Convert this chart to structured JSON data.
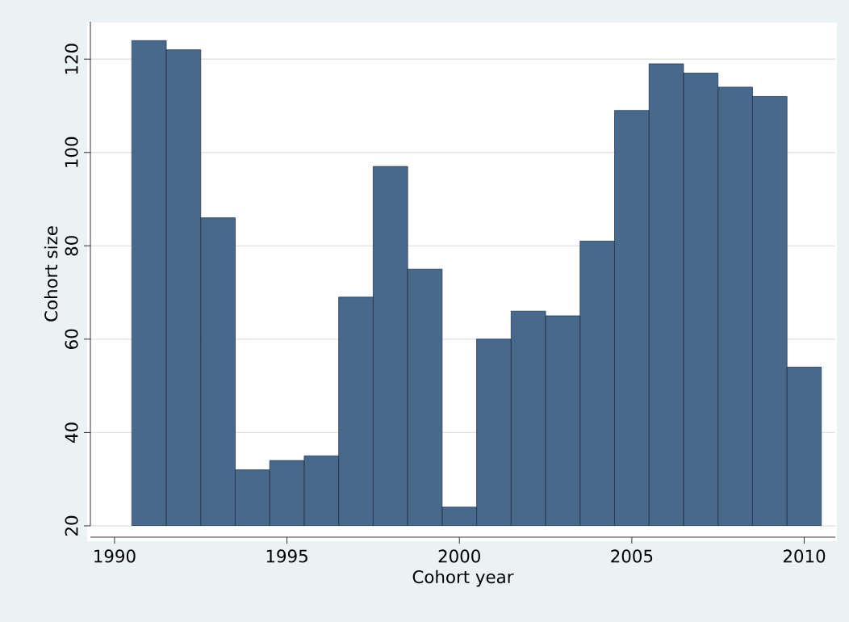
{
  "chart_data": {
    "type": "bar",
    "xlabel": "Cohort year",
    "ylabel": "Cohort size",
    "x": [
      1991,
      1992,
      1993,
      1994,
      1995,
      1996,
      1997,
      1998,
      1999,
      2000,
      2001,
      2002,
      2003,
      2004,
      2005,
      2006,
      2007,
      2008,
      2009,
      2010
    ],
    "values": [
      124,
      122,
      86,
      32,
      34,
      35,
      69,
      97,
      75,
      24,
      60,
      66,
      65,
      81,
      109,
      119,
      117,
      114,
      112,
      54
    ],
    "color": "#48698b",
    "xlim": [
      1989.3,
      2010.9
    ],
    "ylim": [
      20,
      128
    ],
    "xticks": [
      1990,
      1995,
      2000,
      2005,
      2010
    ],
    "yticks": [
      20,
      40,
      60,
      80,
      100,
      120
    ],
    "grid": "y"
  }
}
